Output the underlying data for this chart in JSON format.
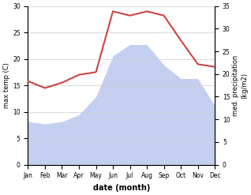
{
  "months": [
    "Jan",
    "Feb",
    "Mar",
    "Apr",
    "May",
    "Jun",
    "Jul",
    "Aug",
    "Sep",
    "Oct",
    "Nov",
    "Dec"
  ],
  "max_temp": [
    15.8,
    14.5,
    15.5,
    17.0,
    17.5,
    29.0,
    28.2,
    29.0,
    28.2,
    23.5,
    19.0,
    18.5
  ],
  "precipitation": [
    9.5,
    9.0,
    9.5,
    11.0,
    15.0,
    24.0,
    26.5,
    26.5,
    22.0,
    19.0,
    19.0,
    13.0
  ],
  "temp_ylim": [
    0,
    30
  ],
  "precip_ylim": [
    0,
    35
  ],
  "temp_yticks": [
    0,
    5,
    10,
    15,
    20,
    25,
    30
  ],
  "precip_yticks": [
    0,
    5,
    10,
    15,
    20,
    25,
    30,
    35
  ],
  "xlabel": "date (month)",
  "ylabel_left": "max temp (C)",
  "ylabel_right": "med. precipitation\n(kg/m2)",
  "temp_color": "#cc4444",
  "precip_color": "#c5cff0",
  "background_color": "#ffffff"
}
